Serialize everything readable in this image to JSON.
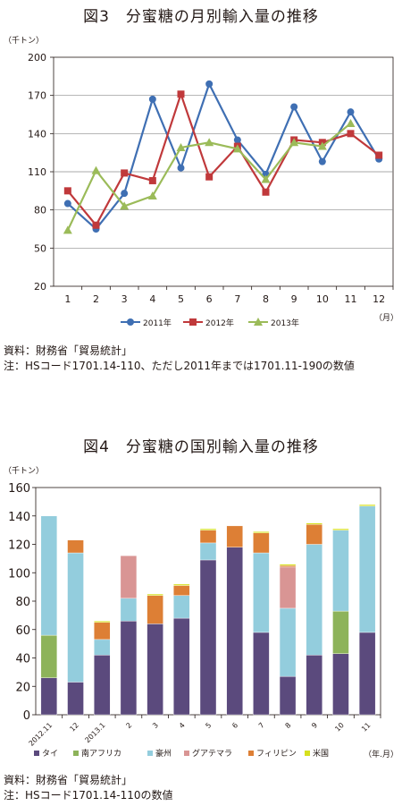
{
  "figure1": {
    "title": "図3　分蜜糖の月別輸入量の推移",
    "source": "資料：財務省「貿易統計」",
    "note": "注：HSコード1701.14-110、ただし2011年までは1701.11-190の数値"
  },
  "figure2": {
    "title": "図4　分蜜糖の国別輸入量の推移",
    "source": "資料：財務省「貿易統計」",
    "note": "注：HSコード1701.14-110の数値"
  },
  "colors": {
    "s2011": "#3f6fb3",
    "s2012": "#c0393b",
    "s2013": "#9bbb59",
    "thai": "#5b4a7d",
    "south_africa": "#8db35a",
    "australia": "#93cddd",
    "guatemala": "#d99594",
    "philippines": "#dd7f35",
    "usa": "#d6e01e"
  },
  "chart_data": [
    {
      "type": "line",
      "ylabel": "（千トン）",
      "xlabel": "（月）",
      "ylim": [
        20,
        200
      ],
      "yticks": [
        "20",
        "50",
        "80",
        "110",
        "140",
        "170",
        "200"
      ],
      "categories": [
        "1",
        "2",
        "3",
        "4",
        "5",
        "6",
        "7",
        "8",
        "9",
        "10",
        "11",
        "12"
      ],
      "grid": "horizontal",
      "legend": "bottom",
      "series": [
        {
          "name": "2011年",
          "marker": "circle",
          "values": [
            85,
            65,
            93,
            167,
            113,
            179,
            135,
            108,
            161,
            118,
            157,
            120
          ]
        },
        {
          "name": "2012年",
          "marker": "square",
          "values": [
            95,
            68,
            109,
            103,
            171,
            106,
            130,
            94,
            135,
            133,
            140,
            123
          ]
        },
        {
          "name": "2013年",
          "marker": "triangle",
          "values": [
            64,
            111,
            83,
            91,
            129,
            133,
            128,
            104,
            133,
            130,
            148,
            null
          ]
        }
      ]
    },
    {
      "type": "bar",
      "stacked": true,
      "ylabel": "（千トン）",
      "xlabel": "（年.月）",
      "ylim": [
        0,
        160
      ],
      "yticks": [
        "0",
        "20",
        "40",
        "60",
        "80",
        "100",
        "120",
        "140",
        "160"
      ],
      "categories": [
        "2012.11",
        "12",
        "2013.1",
        "2",
        "3",
        "4",
        "5",
        "6",
        "7",
        "8",
        "9",
        "10",
        "11"
      ],
      "legend": "bottom",
      "series": [
        {
          "name": "タイ",
          "values": [
            26,
            23,
            42,
            66,
            64,
            68,
            109,
            118,
            58,
            27,
            42,
            43,
            58
          ]
        },
        {
          "name": "南アフリカ",
          "values": [
            30,
            0,
            0,
            0,
            0,
            0,
            0,
            0,
            0,
            0,
            0,
            30,
            0
          ]
        },
        {
          "name": "豪州",
          "values": [
            84,
            91,
            11,
            16,
            0,
            16,
            12,
            0,
            56,
            48,
            78,
            57,
            89
          ]
        },
        {
          "name": "グアテマラ",
          "values": [
            0,
            0,
            0,
            30,
            0,
            0,
            0,
            0,
            0,
            29,
            0,
            0,
            0
          ]
        },
        {
          "name": "フィリピン",
          "values": [
            0,
            9,
            12,
            0,
            20,
            7,
            9,
            15,
            14,
            1,
            14,
            0,
            0
          ]
        },
        {
          "name": "米国",
          "values": [
            0,
            0,
            1,
            0,
            1,
            1,
            1,
            0,
            1,
            1,
            1,
            1,
            1
          ]
        }
      ]
    }
  ]
}
